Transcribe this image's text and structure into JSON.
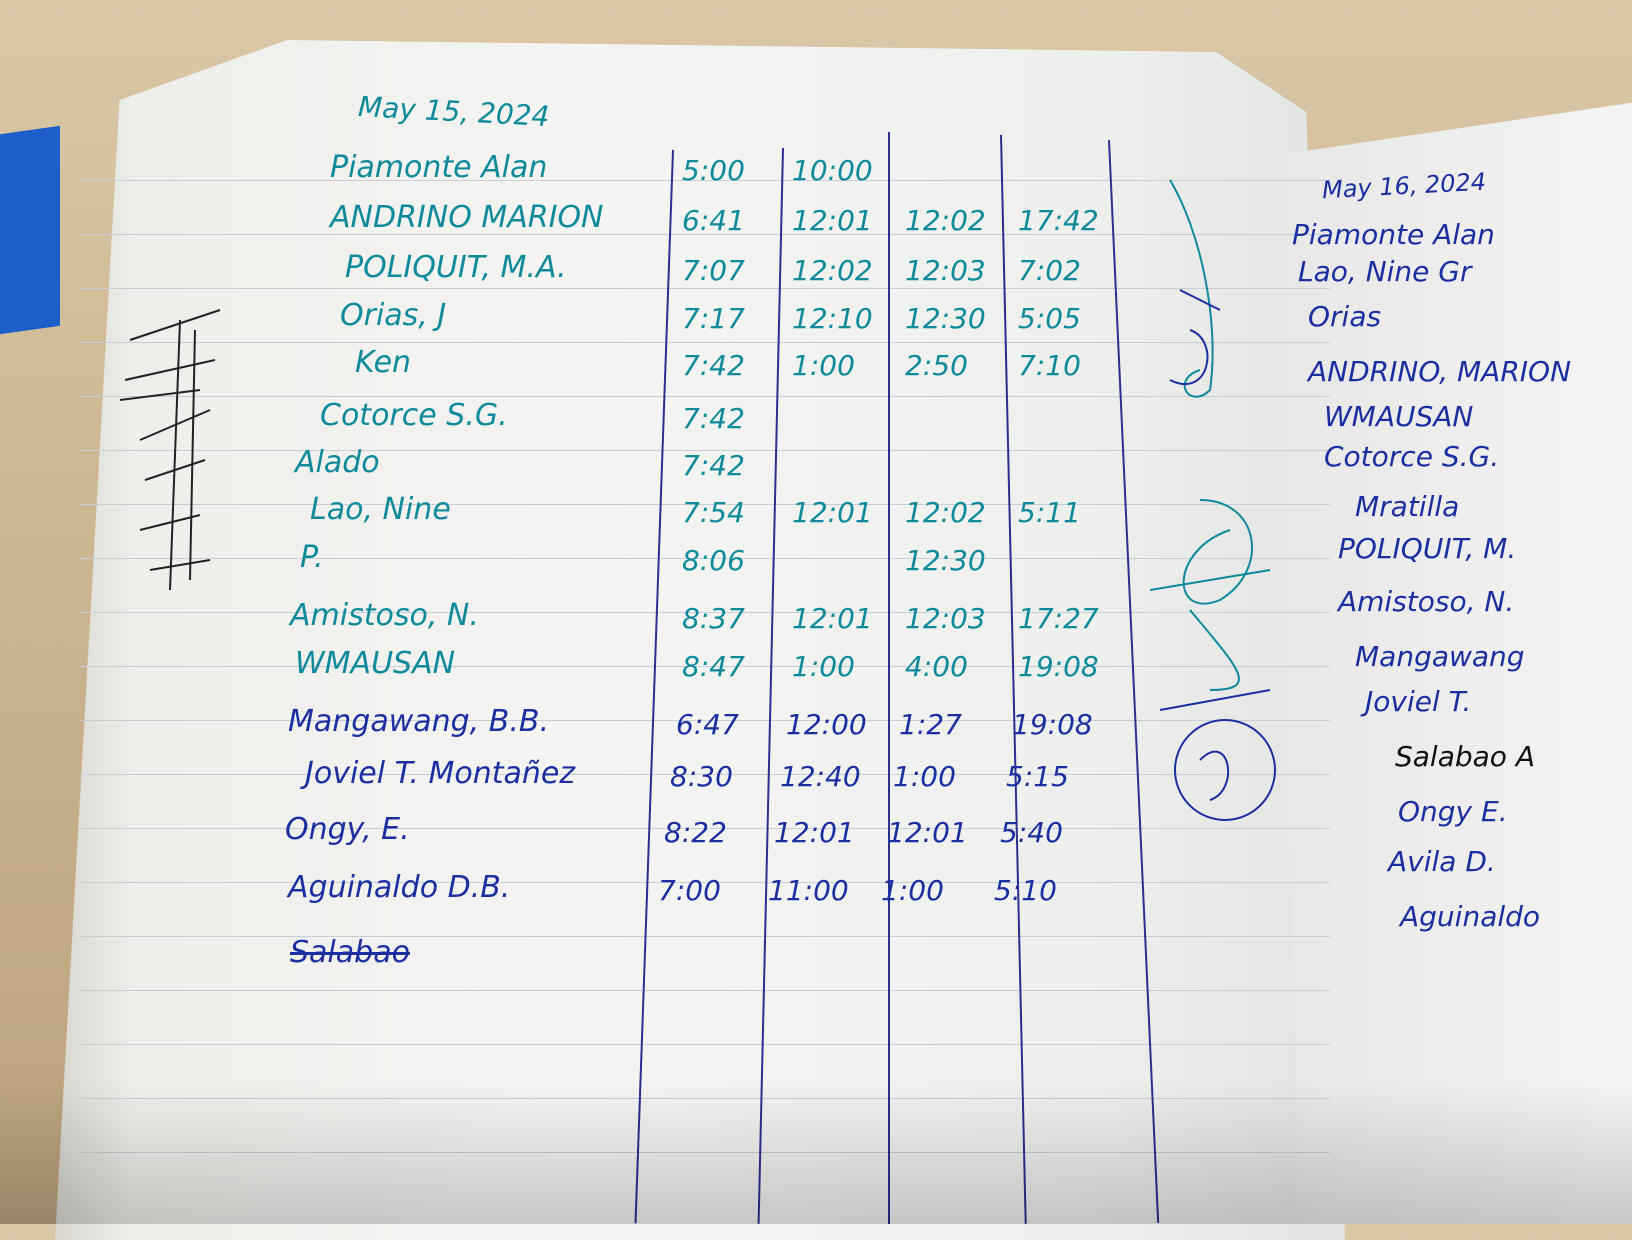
{
  "left_page": {
    "date": "May 15, 2024",
    "rows": [
      {
        "name": "Piamonte Alan",
        "times": [
          "5:00",
          "10:00",
          "",
          ""
        ],
        "ink": "teal"
      },
      {
        "name": "ANDRINO MARION",
        "times": [
          "6:41",
          "12:01",
          "12:02",
          "17:42"
        ],
        "ink": "teal"
      },
      {
        "name": "POLIQUIT, M.A.",
        "times": [
          "7:07",
          "12:02",
          "12:03",
          "7:02"
        ],
        "ink": "teal"
      },
      {
        "name": "Orias, J",
        "times": [
          "7:17",
          "12:10",
          "12:30",
          "5:05"
        ],
        "ink": "teal"
      },
      {
        "name": "Ken",
        "times": [
          "7:42",
          "1:00",
          "2:50",
          "7:10"
        ],
        "ink": "teal"
      },
      {
        "name": "Cotorce S.G.",
        "times": [
          "7:42",
          "",
          "",
          ""
        ],
        "ink": "teal"
      },
      {
        "name": "Alado",
        "times": [
          "7:42",
          "",
          "",
          ""
        ],
        "ink": "teal"
      },
      {
        "name": "Lao, Nine",
        "times": [
          "7:54",
          "12:01",
          "12:02",
          "5:11"
        ],
        "ink": "teal"
      },
      {
        "name": "P.",
        "times": [
          "8:06",
          "",
          "12:30",
          ""
        ],
        "ink": "teal"
      },
      {
        "name": "Amistoso, N.",
        "times": [
          "8:37",
          "12:01",
          "12:03",
          "17:27"
        ],
        "ink": "teal"
      },
      {
        "name": "WMAUSAN",
        "times": [
          "8:47",
          "1:00",
          "4:00",
          "19:08"
        ],
        "ink": "teal"
      },
      {
        "name": "Mangawang, B.B.",
        "times": [
          "6:47",
          "12:00",
          "1:27",
          "19:08"
        ],
        "ink": "blue"
      },
      {
        "name": "Joviel T. Montañez",
        "times": [
          "8:30",
          "12:40",
          "1:00",
          "5:15"
        ],
        "ink": "blue"
      },
      {
        "name": "Ongy, E.",
        "times": [
          "8:22",
          "12:01",
          "12:01",
          "5:40"
        ],
        "ink": "blue"
      },
      {
        "name": "Aguinaldo D.B.",
        "times": [
          "7:00",
          "11:00",
          "1:00",
          "5:10"
        ],
        "ink": "blue"
      }
    ],
    "crossed_out": "Salabao"
  },
  "right_page": {
    "date": "May 16, 2024",
    "names": [
      "Piamonte Alan",
      "Lao, Nine Gr",
      "Orias",
      "ANDRINO, MARION",
      "WMAUSAN",
      "Cotorce S.G.",
      "Mratilla",
      "POLIQUIT, M.",
      "Amistoso, N.",
      "Mangawang",
      "Joviel T.",
      "Salabao A",
      "Ongy E.",
      "Avila D.",
      "Aguinaldo"
    ]
  },
  "colors": {
    "teal_ink": "#0e8a9a",
    "blue_ink": "#1d2ea0",
    "paper": "#f4f5f3",
    "desk": "#d9c7a6"
  }
}
